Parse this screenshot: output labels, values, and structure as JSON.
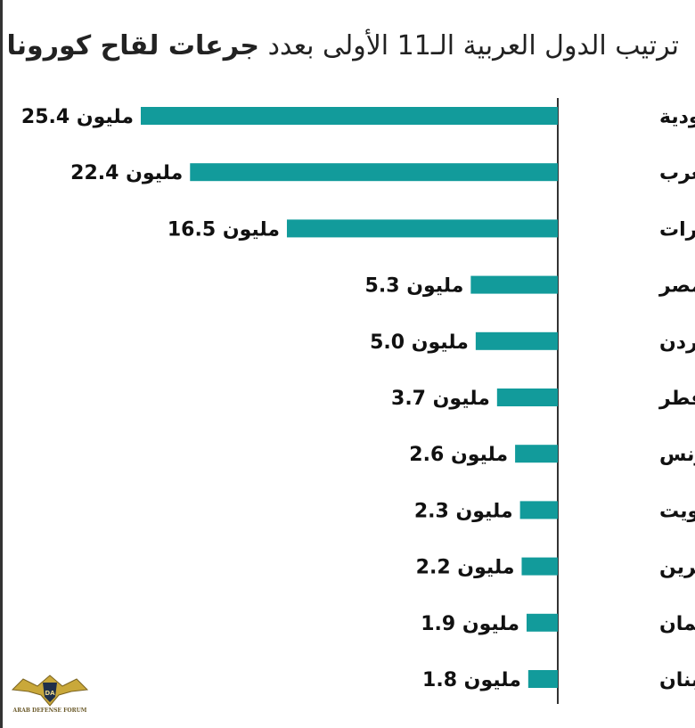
{
  "title": {
    "regular": "ترتيب الدول العربية الـ11 الأولى بعدد",
    "bold": "جرعات لقاح كورونا"
  },
  "unit": "مليون",
  "watermark": {
    "text": "ARAB DEFENSE FORUM"
  },
  "colors": {
    "bar": "#129b9b",
    "axis": "#333333",
    "text": "#111111"
  },
  "chart_data": {
    "type": "bar",
    "orientation": "horizontal",
    "categories": [
      "السعودية",
      "المغرب",
      "الإمارات",
      "مصر",
      "الأردن",
      "قطر",
      "تونس",
      "الكويت",
      "البحرين",
      "عُمان",
      "لبنان"
    ],
    "values": [
      25.4,
      22.4,
      16.5,
      5.3,
      5.0,
      3.7,
      2.6,
      2.3,
      2.2,
      1.9,
      1.8
    ],
    "value_labels": [
      "25.4",
      "22.4",
      "16.5",
      "5.3",
      "5.0",
      "3.7",
      "2.6",
      "2.3",
      "2.2",
      "1.9",
      "1.8"
    ],
    "title": "ترتيب الدول العربية الـ11 الأولى بعدد جرعات لقاح كورونا",
    "xlabel": "",
    "ylabel": "",
    "grid": false,
    "legend": "none"
  }
}
